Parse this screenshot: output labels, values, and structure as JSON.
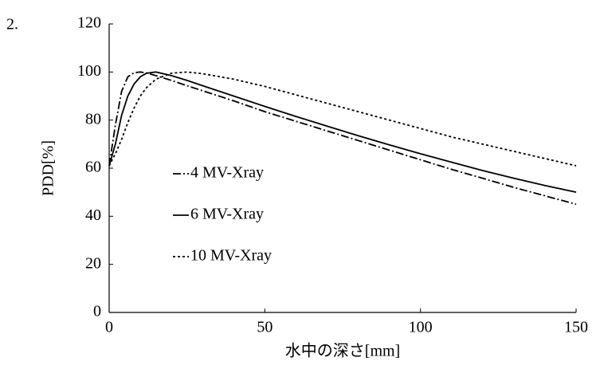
{
  "figure_number": "2.",
  "chart_data": {
    "type": "line",
    "xlabel": "水中の深さ[mm]",
    "ylabel": "PDD[%]",
    "x": [
      0,
      2,
      4,
      6,
      8,
      10,
      12,
      15,
      20,
      25,
      30,
      40,
      50,
      60,
      70,
      80,
      90,
      100,
      110,
      120,
      130,
      140,
      150
    ],
    "series": [
      {
        "name": "4 MV-Xray",
        "color": "#000000",
        "dash": "dashdot",
        "values": [
          61,
          78,
          92,
          98,
          99.7,
          100,
          99.6,
          98.5,
          96.5,
          94.3,
          92.2,
          88,
          83.5,
          79.5,
          75.5,
          71.5,
          67.5,
          63.5,
          59.5,
          55.8,
          52,
          48.5,
          45
        ]
      },
      {
        "name": "6 MV-Xray",
        "color": "#000000",
        "dash": "solid",
        "values": [
          61,
          70,
          82,
          90,
          95,
          98,
          99.5,
          100,
          98.5,
          96.5,
          94.3,
          90,
          85.7,
          81.5,
          77.5,
          73.5,
          69.7,
          66,
          62.5,
          59,
          55.8,
          52.8,
          50
        ]
      },
      {
        "name": "10 MV-Xray",
        "color": "#000000",
        "dash": "dotted",
        "values": [
          61,
          66,
          72,
          79,
          85,
          90,
          93.5,
          97,
          99.5,
          100,
          99.3,
          97,
          94,
          90.5,
          87,
          83.5,
          80,
          76.5,
          73,
          70,
          67,
          64,
          61
        ]
      }
    ],
    "xlim": [
      0,
      150
    ],
    "xticks": [
      0,
      50,
      100,
      150
    ],
    "ylim": [
      0,
      120
    ],
    "yticks": [
      0,
      20,
      40,
      60,
      80,
      100,
      120
    ],
    "grid": false,
    "legend": "left"
  }
}
